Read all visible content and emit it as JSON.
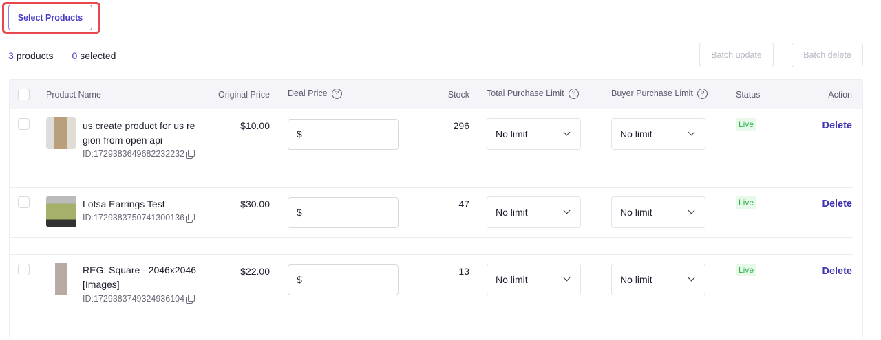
{
  "toolbar": {
    "select_products": "Select Products",
    "product_count": "3",
    "products_label": "products",
    "selected_count": "0",
    "selected_label": "selected",
    "batch_update": "Batch update",
    "batch_delete": "Batch delete"
  },
  "table": {
    "headers": {
      "product_name": "Product Name",
      "original_price": "Original Price",
      "deal_price": "Deal Price",
      "stock": "Stock",
      "total_limit": "Total Purchase Limit",
      "buyer_limit": "Buyer Purchase Limit",
      "status": "Status",
      "action": "Action"
    },
    "rows": [
      {
        "name": "us create product for us re gion from open api",
        "id": "ID:1729383649682232232",
        "price": "$10.00",
        "deal_prefix": "$",
        "stock": "296",
        "total_limit": "No limit",
        "buyer_limit": "No limit",
        "status": "Live",
        "action": "Delete"
      },
      {
        "name": "Lotsa Earrings Test",
        "id": "ID:1729383750741300136",
        "price": "$30.00",
        "deal_prefix": "$",
        "stock": "47",
        "total_limit": "No limit",
        "buyer_limit": "No limit",
        "status": "Live",
        "action": "Delete"
      },
      {
        "name": "REG: Square - 2046x2046 [Images]",
        "id": "ID:1729383749324936104",
        "price": "$22.00",
        "deal_prefix": "$",
        "stock": "13",
        "total_limit": "No limit",
        "buyer_limit": "No limit",
        "status": "Live",
        "action": "Delete"
      }
    ]
  },
  "colors": {
    "accent": "#4b3fc9",
    "live_bg": "#e8f9ea",
    "live_text": "#2fb34a",
    "highlight": "#e5484d"
  }
}
